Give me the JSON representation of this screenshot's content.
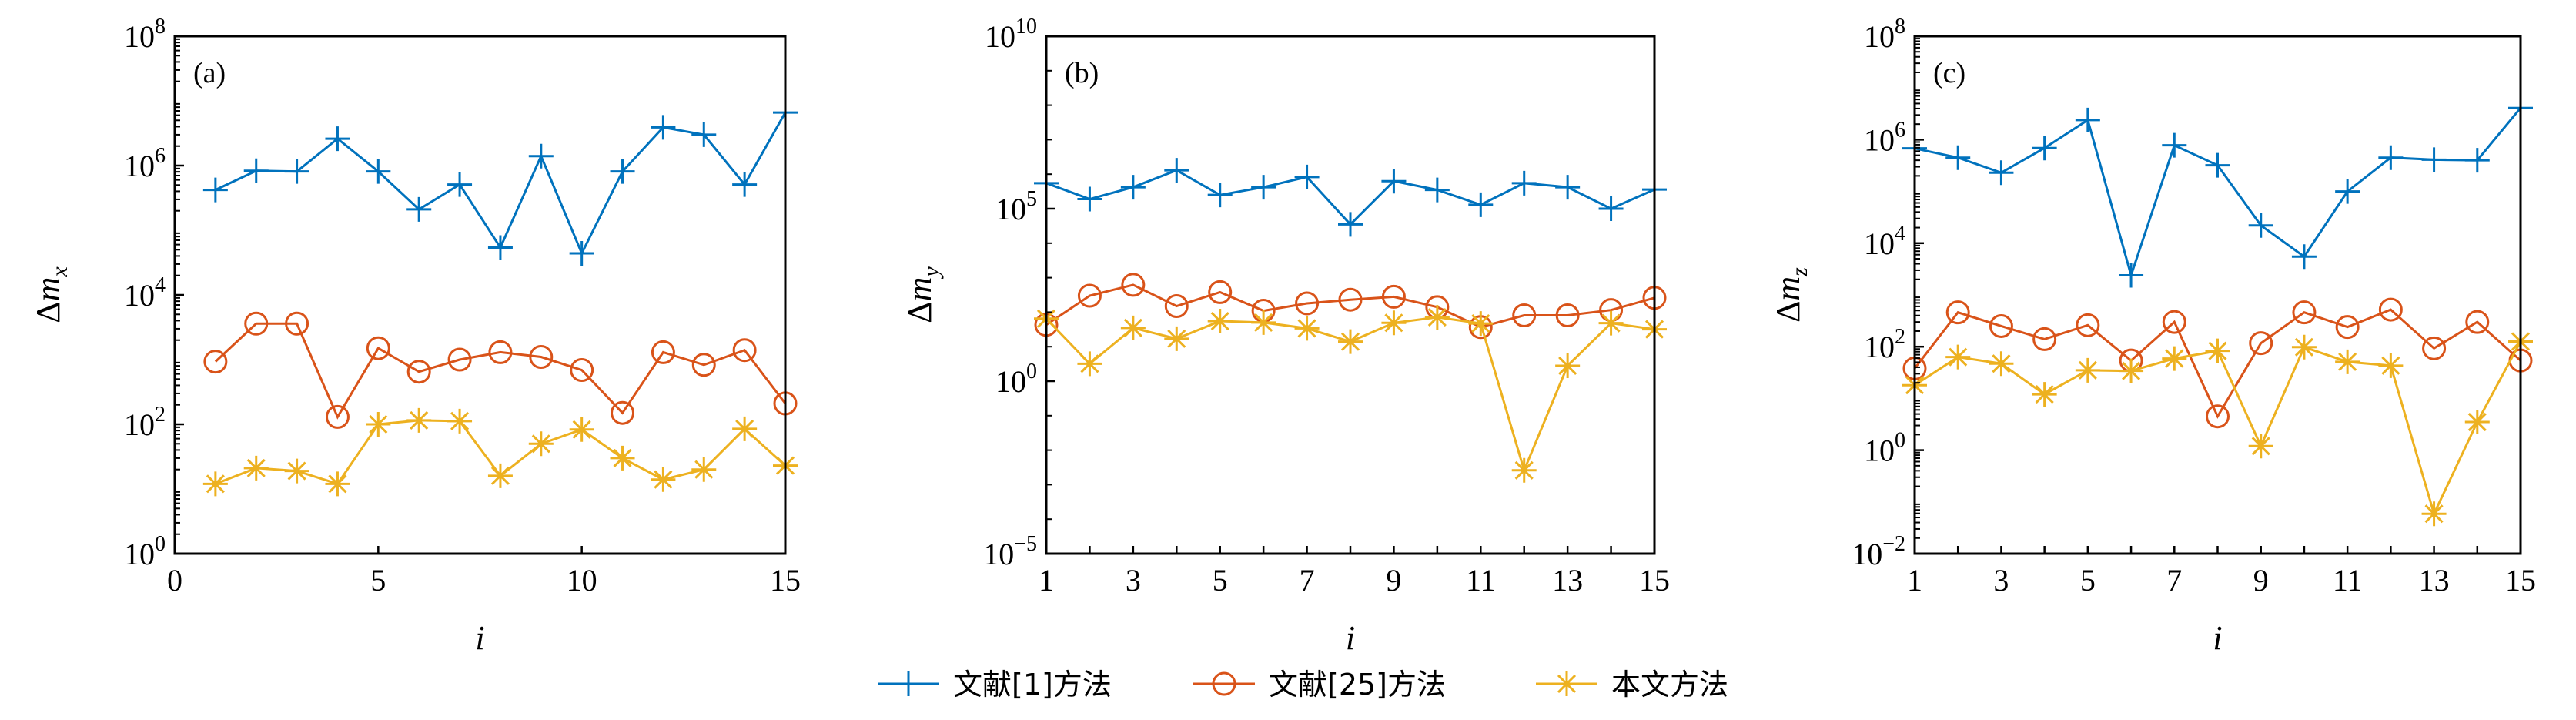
{
  "chart_data": [
    {
      "type": "line",
      "panel_label": "(a)",
      "xlabel": "i",
      "ylabel": {
        "prefix": "Δm",
        "sub": "x"
      },
      "xlim": [
        0,
        15
      ],
      "xticks": [
        0,
        5,
        10,
        15
      ],
      "xminor": [],
      "yscale": "log",
      "ylim": [
        1,
        100000000.0
      ],
      "yticks_exp": [
        0,
        2,
        4,
        6,
        8
      ],
      "yminor": true,
      "x": [
        1,
        2,
        3,
        4,
        5,
        6,
        7,
        8,
        9,
        10,
        11,
        12,
        13,
        14,
        15
      ],
      "series": [
        {
          "name": "文献[1]方法",
          "values": [
            420000.0,
            830000.0,
            810000.0,
            2600000.0,
            810000.0,
            210000.0,
            510000.0,
            54000.0,
            1400000.0,
            44000.0,
            810000.0,
            3900000.0,
            3000000.0,
            510000.0,
            6600000.0
          ]
        },
        {
          "name": "文献[25]方法",
          "values": [
            930,
            3600,
            3600,
            130,
            1500,
            650,
            1000,
            1300,
            1100,
            690,
            150,
            1300,
            830,
            1400,
            210
          ]
        },
        {
          "name": "本文方法",
          "values": [
            12,
            21,
            19,
            12,
            100,
            115,
            112,
            16,
            50,
            83,
            30,
            14,
            20,
            85,
            23
          ]
        }
      ]
    },
    {
      "type": "line",
      "panel_label": "(b)",
      "xlabel": "i",
      "ylabel": {
        "prefix": "Δm",
        "sub": "y"
      },
      "xlim": [
        1,
        15
      ],
      "xticks": [
        1,
        3,
        5,
        7,
        9,
        11,
        13,
        15
      ],
      "xminor": [
        2,
        4,
        6,
        8,
        10,
        12,
        14
      ],
      "yscale": "log",
      "ylim": [
        1e-05,
        10000000000.0
      ],
      "yticks_exp": [
        -5,
        0,
        5,
        10
      ],
      "yminor": false,
      "x": [
        1,
        2,
        3,
        4,
        5,
        6,
        7,
        8,
        9,
        10,
        11,
        12,
        13,
        14,
        15
      ],
      "series": [
        {
          "name": "文献[1]方法",
          "values": [
            550000.0,
            190000.0,
            420000.0,
            1300000.0,
            250000.0,
            420000.0,
            830000.0,
            35000.0,
            630000.0,
            350000.0,
            130000.0,
            550000.0,
            420000.0,
            100000.0,
            360000.0
          ]
        },
        {
          "name": "文献[25]方法",
          "values": [
            43,
            300,
            620,
            150,
            380,
            110,
            180,
            230,
            280,
            140,
            37,
            81,
            81,
            115,
            260
          ]
        },
        {
          "name": "本文方法",
          "values": [
            65,
            3.2,
            35,
            17,
            55,
            50,
            34,
            14,
            49,
            71,
            47,
            0.0026,
            2.8,
            48,
            32
          ]
        }
      ]
    },
    {
      "type": "line",
      "panel_label": "(c)",
      "xlabel": "i",
      "ylabel": {
        "prefix": "Δm",
        "sub": "z"
      },
      "xlim": [
        1,
        15
      ],
      "xticks": [
        1,
        3,
        5,
        7,
        9,
        11,
        13,
        15
      ],
      "xminor": [
        2,
        4,
        6,
        8,
        10,
        12,
        14
      ],
      "yscale": "log",
      "ylim": [
        0.01,
        100000000.0
      ],
      "yticks_exp": [
        -2,
        0,
        2,
        4,
        6,
        8
      ],
      "yminor": true,
      "x": [
        1,
        2,
        3,
        4,
        5,
        6,
        7,
        8,
        9,
        10,
        11,
        12,
        13,
        14,
        15
      ],
      "series": [
        {
          "name": "文献[1]方法",
          "values": [
            680000.0,
            450000.0,
            230000.0,
            690000.0,
            2400000.0,
            2400,
            780000.0,
            320000.0,
            22000.0,
            5500,
            100000.0,
            450000.0,
            410000.0,
            400000.0,
            4100000.0
          ]
        },
        {
          "name": "文献[25]方法",
          "values": [
            38,
            460,
            250,
            140,
            260,
            54,
            300,
            4.5,
            117,
            460,
            240,
            520,
            93,
            300,
            54
          ]
        },
        {
          "name": "本文方法",
          "values": [
            18,
            63,
            47,
            12,
            35,
            34,
            59,
            83,
            1.2,
            98,
            51,
            43,
            0.059,
            3.5,
            126
          ]
        }
      ]
    }
  ],
  "legend": [
    {
      "label": "文献[1]方法",
      "marker": "plus",
      "color": "#0072BD"
    },
    {
      "label": "文献[25]方法",
      "marker": "circle",
      "color": "#D95319"
    },
    {
      "label": "本文方法",
      "marker": "asterisk",
      "color": "#EDB120"
    }
  ],
  "tick_base": "10"
}
